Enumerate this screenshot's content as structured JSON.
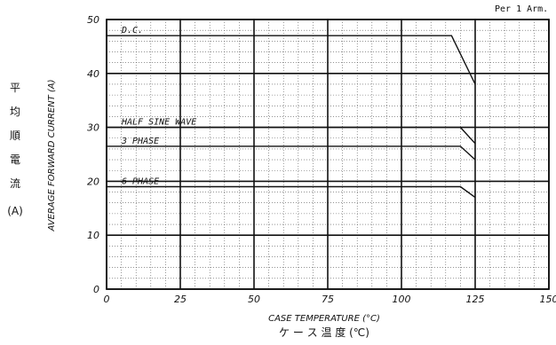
{
  "chart_data": {
    "type": "line",
    "note": "Per 1 Arm.",
    "xlabel": "CASE TEMPERATURE (°C)",
    "xlabel_jp": "ケ ー ス 温 度 (℃)",
    "ylabel": "AVERAGE FORWARD CURRENT (A)",
    "ylabel_jp": [
      "平",
      "均",
      "順",
      "電",
      "流",
      "(A)"
    ],
    "xlim": [
      0,
      150
    ],
    "ylim": [
      0,
      50
    ],
    "xticks": [
      0,
      25,
      50,
      75,
      100,
      125,
      150
    ],
    "yticks": [
      0,
      10,
      20,
      30,
      40,
      50
    ],
    "grid": true,
    "series": [
      {
        "name": "D.C.",
        "x": [
          0,
          117,
          125
        ],
        "y": [
          47,
          47,
          38
        ]
      },
      {
        "name": "HALF SINE WAVE",
        "x": [
          0,
          120,
          125
        ],
        "y": [
          30,
          30,
          27
        ]
      },
      {
        "name": "3 PHASE",
        "x": [
          0,
          120,
          125
        ],
        "y": [
          26.5,
          26.5,
          24
        ]
      },
      {
        "name": "6 PHASE",
        "x": [
          0,
          120,
          125
        ],
        "y": [
          19,
          19,
          17
        ]
      }
    ]
  }
}
